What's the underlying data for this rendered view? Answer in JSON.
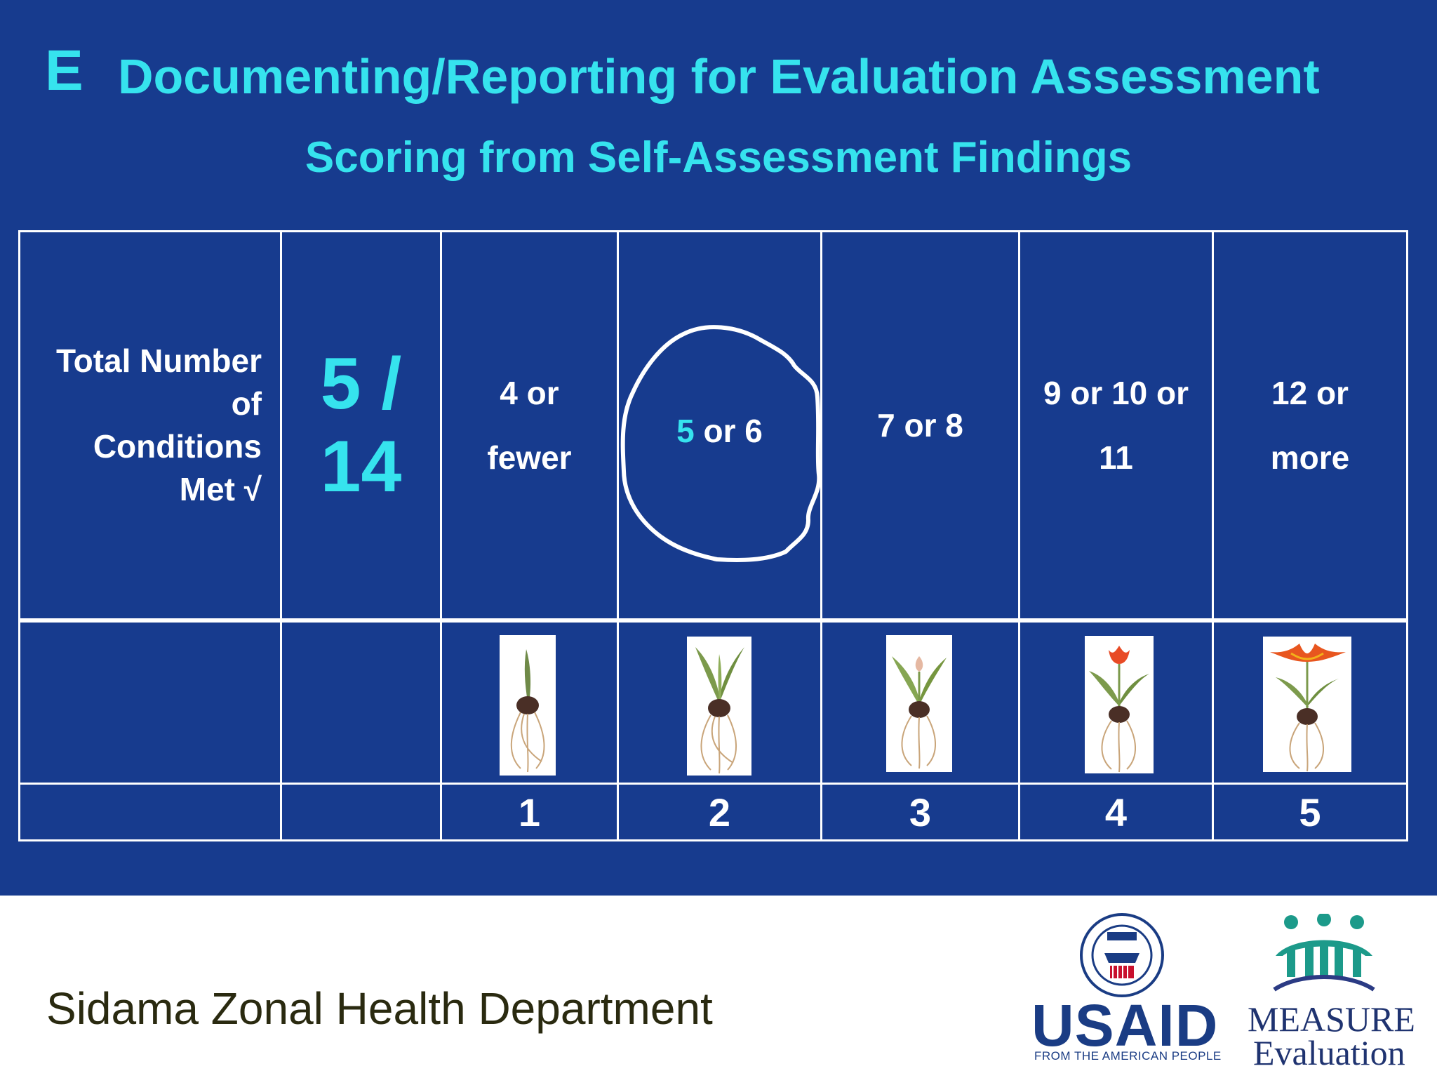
{
  "slide": {
    "letter": "E",
    "title": "Documenting/Reporting for Evaluation Assessment",
    "subtitle": "Scoring from Self-Assessment Findings"
  },
  "table": {
    "conditions_label": [
      "Total Number",
      "of",
      "Conditions",
      "Met √"
    ],
    "ratio_lines": [
      "5 /",
      "14"
    ],
    "ranges": [
      {
        "lines": [
          "4 or",
          "fewer"
        ]
      },
      {
        "lines": [
          "5 or 6"
        ],
        "highlight": "5",
        "rest": " or 6",
        "circled": true
      },
      {
        "lines": [
          "7 or 8"
        ]
      },
      {
        "lines": [
          "9 or 10 or",
          "11"
        ]
      },
      {
        "lines": [
          "12 or",
          "more"
        ]
      }
    ],
    "plants": [
      "bulb-sprout-icon",
      "bulb-leaves-icon",
      "bulb-bud-icon",
      "tulip-opening-icon",
      "tulip-bloom-icon"
    ],
    "scores": [
      "1",
      "2",
      "3",
      "4",
      "5"
    ]
  },
  "footer": {
    "department": "Sidama Zonal Health Department",
    "usaid_wordmark": "USAID",
    "usaid_tagline": "FROM THE AMERICAN PEOPLE",
    "measure_wordmark": "MEASURE",
    "evaluation_wordmark": "Evaluation"
  },
  "colors": {
    "background": "#173b8e",
    "title": "#36e3ee",
    "text": "#ffffff",
    "footer_text": "#2a2a10"
  }
}
